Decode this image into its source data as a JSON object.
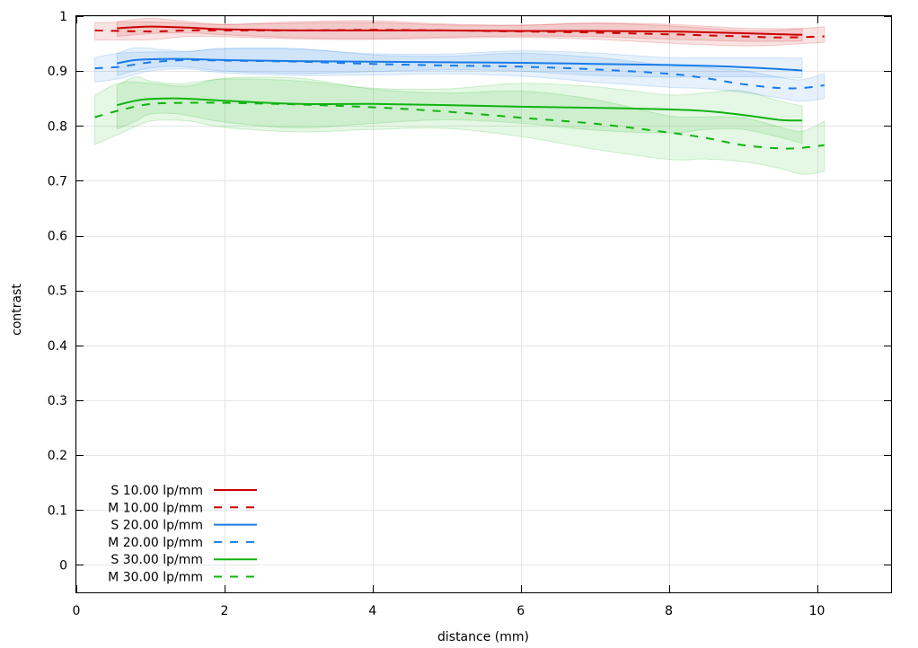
{
  "chart_data": {
    "type": "line",
    "xlabel": "distance (mm)",
    "ylabel": "contrast",
    "xlim": [
      0,
      11
    ],
    "ylim": [
      -0.05,
      1
    ],
    "xticks": [
      "0",
      "2",
      "4",
      "6",
      "8",
      "10"
    ],
    "yticks": [
      "0",
      "0.1",
      "0.2",
      "0.3",
      "0.4",
      "0.5",
      "0.6",
      "0.7",
      "0.8",
      "0.9",
      "1"
    ],
    "grid": true,
    "legend_position": "bottom-left",
    "series": [
      {
        "name": "S 10.00 lp/mm",
        "color": "#cc0000",
        "dash": "solid",
        "x": [
          0.55,
          1.0,
          1.5,
          2.0,
          3.0,
          4.0,
          5.0,
          6.0,
          7.0,
          8.0,
          9.0,
          9.8
        ],
        "values": [
          0.978,
          0.981,
          0.979,
          0.976,
          0.974,
          0.974,
          0.974,
          0.973,
          0.973,
          0.972,
          0.969,
          0.966
        ],
        "band": 0.012
      },
      {
        "name": "M 10.00 lp/mm",
        "color": "#cc0000",
        "dash": "dashed",
        "x": [
          0.25,
          1.0,
          1.5,
          2.0,
          3.0,
          4.0,
          5.0,
          6.0,
          7.0,
          8.0,
          9.0,
          9.5,
          10.1
        ],
        "values": [
          0.974,
          0.972,
          0.974,
          0.974,
          0.974,
          0.975,
          0.974,
          0.972,
          0.97,
          0.967,
          0.963,
          0.961,
          0.963
        ],
        "band": 0.014
      },
      {
        "name": "S 20.00 lp/mm",
        "color": "#1a7be8",
        "dash": "solid",
        "x": [
          0.55,
          0.8,
          1.2,
          1.5,
          2.0,
          3.0,
          4.0,
          5.0,
          6.0,
          7.0,
          8.0,
          9.0,
          9.8
        ],
        "values": [
          0.914,
          0.92,
          0.922,
          0.922,
          0.92,
          0.918,
          0.917,
          0.916,
          0.915,
          0.913,
          0.911,
          0.907,
          0.901
        ],
        "band": 0.018
      },
      {
        "name": "M 20.00 lp/mm",
        "color": "#1a7be8",
        "dash": "dashed",
        "x": [
          0.25,
          0.6,
          1.0,
          1.5,
          2.0,
          3.0,
          4.0,
          5.0,
          6.0,
          7.0,
          8.0,
          8.5,
          9.0,
          9.5,
          9.8,
          10.1
        ],
        "values": [
          0.905,
          0.908,
          0.916,
          0.92,
          0.919,
          0.917,
          0.913,
          0.91,
          0.908,
          0.903,
          0.895,
          0.887,
          0.876,
          0.869,
          0.869,
          0.874
        ],
        "band": 0.02
      },
      {
        "name": "S 30.00 lp/mm",
        "color": "#11b311",
        "dash": "solid",
        "x": [
          0.55,
          0.8,
          1.0,
          1.4,
          2.0,
          3.0,
          4.0,
          5.0,
          6.0,
          7.0,
          8.0,
          8.5,
          9.0,
          9.5,
          9.8
        ],
        "values": [
          0.838,
          0.846,
          0.849,
          0.85,
          0.846,
          0.84,
          0.84,
          0.838,
          0.835,
          0.833,
          0.83,
          0.827,
          0.82,
          0.811,
          0.81
        ],
        "band": 0.035
      },
      {
        "name": "M 30.00 lp/mm",
        "color": "#11b311",
        "dash": "dashed",
        "x": [
          0.25,
          0.6,
          1.0,
          1.5,
          2.0,
          3.0,
          4.0,
          5.0,
          6.0,
          7.0,
          8.0,
          8.5,
          9.0,
          9.5,
          9.8,
          10.1
        ],
        "values": [
          0.816,
          0.829,
          0.84,
          0.842,
          0.842,
          0.839,
          0.834,
          0.826,
          0.815,
          0.804,
          0.788,
          0.778,
          0.765,
          0.759,
          0.76,
          0.765
        ],
        "band": 0.04
      }
    ]
  }
}
